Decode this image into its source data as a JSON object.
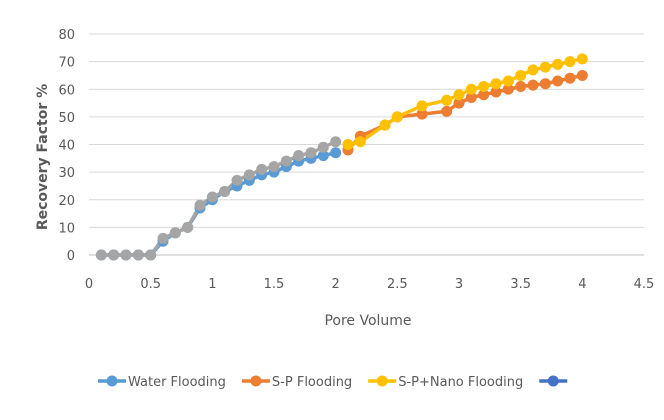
{
  "chart_data": {
    "type": "line",
    "title": "",
    "xlabel": "Pore Volume",
    "ylabel": "Recovery Factor %",
    "xlim": [
      0,
      4.5
    ],
    "ylim": [
      0,
      80
    ],
    "x_ticks": [
      "0",
      "0.5",
      "1",
      "1.5",
      "2",
      "2.5",
      "3",
      "3.5",
      "4",
      "4.5"
    ],
    "y_ticks": [
      "0",
      "10",
      "20",
      "30",
      "40",
      "50",
      "60",
      "70",
      "80"
    ],
    "grid": "horizontal",
    "legend_position": "bottom",
    "series": [
      {
        "name": "Water Flooding",
        "color": "#5B9BD5",
        "points": [
          [
            0.1,
            0
          ],
          [
            0.2,
            0
          ],
          [
            0.3,
            0
          ],
          [
            0.4,
            0
          ],
          [
            0.5,
            0
          ],
          [
            0.6,
            5
          ],
          [
            0.7,
            8
          ],
          [
            0.8,
            10
          ],
          [
            0.9,
            17
          ],
          [
            1.0,
            20
          ],
          [
            1.1,
            23
          ],
          [
            1.2,
            25
          ],
          [
            1.3,
            27
          ],
          [
            1.4,
            29
          ],
          [
            1.5,
            30
          ],
          [
            1.6,
            32
          ],
          [
            1.7,
            34
          ],
          [
            1.8,
            35
          ],
          [
            1.9,
            36
          ],
          [
            2.0,
            37
          ]
        ]
      },
      {
        "name": "S-P Flooding",
        "color": "#ED7D31",
        "points": [
          [
            2.1,
            38
          ],
          [
            2.2,
            43
          ],
          [
            2.4,
            47
          ],
          [
            2.5,
            50
          ],
          [
            2.7,
            51
          ],
          [
            2.9,
            52
          ],
          [
            3.0,
            55
          ],
          [
            3.1,
            57
          ],
          [
            3.2,
            58
          ],
          [
            3.3,
            59
          ],
          [
            3.4,
            60
          ],
          [
            3.5,
            61
          ],
          [
            3.6,
            61.5
          ],
          [
            3.7,
            62
          ],
          [
            3.8,
            63
          ],
          [
            3.9,
            64
          ],
          [
            4.0,
            65
          ]
        ]
      },
      {
        "name": "S-P+Nano Flooding",
        "color": "#FFC000",
        "points": [
          [
            2.1,
            40
          ],
          [
            2.2,
            41
          ],
          [
            2.4,
            47
          ],
          [
            2.5,
            50
          ],
          [
            2.7,
            54
          ],
          [
            2.9,
            56
          ],
          [
            3.0,
            58
          ],
          [
            3.1,
            60
          ],
          [
            3.2,
            61
          ],
          [
            3.3,
            62
          ],
          [
            3.4,
            63
          ],
          [
            3.5,
            65
          ],
          [
            3.6,
            67
          ],
          [
            3.7,
            68
          ],
          [
            3.8,
            69
          ],
          [
            3.9,
            70
          ],
          [
            4.0,
            71
          ]
        ]
      },
      {
        "name": "",
        "color": "#A5A5A5",
        "points": [
          [
            0.1,
            0
          ],
          [
            0.2,
            0
          ],
          [
            0.3,
            0
          ],
          [
            0.4,
            0
          ],
          [
            0.5,
            0
          ],
          [
            0.6,
            6
          ],
          [
            0.7,
            8
          ],
          [
            0.8,
            10
          ],
          [
            0.9,
            18
          ],
          [
            1.0,
            21
          ],
          [
            1.1,
            23
          ],
          [
            1.2,
            27
          ],
          [
            1.3,
            29
          ],
          [
            1.4,
            31
          ],
          [
            1.5,
            32
          ],
          [
            1.6,
            34
          ],
          [
            1.7,
            36
          ],
          [
            1.8,
            37
          ],
          [
            1.9,
            39
          ],
          [
            2.0,
            41
          ]
        ]
      },
      {
        "name": "",
        "color": "#4472C4",
        "points": []
      }
    ]
  }
}
